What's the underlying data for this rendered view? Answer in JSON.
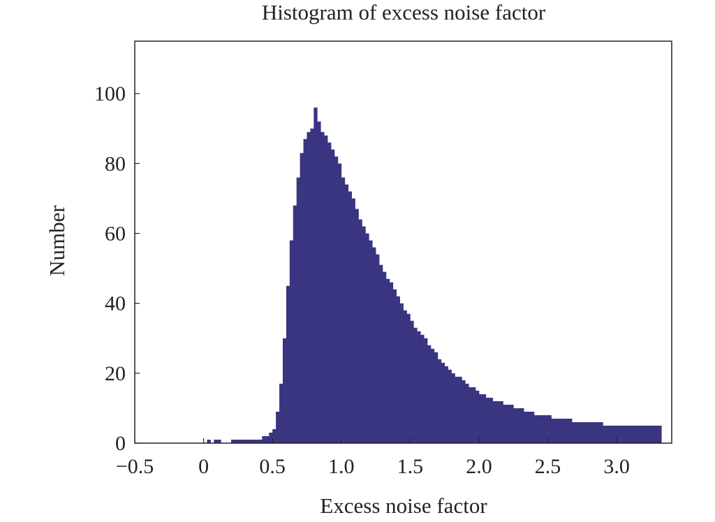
{
  "chart_data": {
    "type": "bar",
    "title": "Histogram of excess noise factor",
    "xlabel": "Excess noise factor",
    "ylabel": "Number",
    "xlim": [
      -0.5,
      3.4
    ],
    "ylim": [
      0,
      115
    ],
    "x_ticks": [
      -0.5,
      0,
      0.5,
      1.0,
      1.5,
      2.0,
      2.5,
      3.0
    ],
    "x_tick_labels": [
      "−0.5",
      "0",
      "0.5",
      "1.0",
      "1.5",
      "2.0",
      "2.5",
      "3.0"
    ],
    "y_ticks": [
      0,
      20,
      40,
      60,
      80,
      100
    ],
    "y_tick_labels": [
      "0",
      "20",
      "40",
      "60",
      "80",
      "100"
    ],
    "bar_color": "#3a3580",
    "grid": false,
    "bin_width": 0.025,
    "bins_start": -0.5,
    "values": [
      0,
      0,
      0,
      0,
      0,
      0,
      0,
      0,
      0,
      0,
      0,
      0,
      0,
      0,
      0,
      0,
      0,
      0,
      0,
      0,
      0,
      1,
      0,
      1,
      1,
      0,
      0,
      0,
      1,
      1,
      1,
      1,
      1,
      1,
      1,
      1,
      1,
      2,
      2,
      3,
      4,
      9,
      17,
      30,
      45,
      58,
      68,
      76,
      83,
      87,
      89,
      90,
      96,
      92,
      89,
      88,
      86,
      84,
      82,
      80,
      76,
      74,
      72,
      70,
      67,
      64,
      62,
      60,
      58,
      56,
      54,
      51,
      49,
      47,
      46,
      44,
      42,
      40,
      38,
      37,
      35,
      33,
      32,
      31,
      30,
      28,
      27,
      26,
      24,
      23,
      22,
      21,
      20,
      19,
      19,
      18,
      17,
      16,
      16,
      15,
      14,
      14,
      13,
      13,
      12,
      12,
      12,
      11,
      11,
      11,
      10,
      10,
      10,
      9,
      9,
      9,
      8,
      8,
      8,
      8,
      8,
      7,
      7,
      7,
      7,
      7,
      7,
      6,
      6,
      6,
      6,
      6,
      6,
      6,
      6,
      6,
      5,
      5,
      5,
      5,
      5,
      5,
      5,
      5,
      5,
      5,
      5,
      5,
      5,
      5,
      5,
      5,
      5
    ]
  }
}
